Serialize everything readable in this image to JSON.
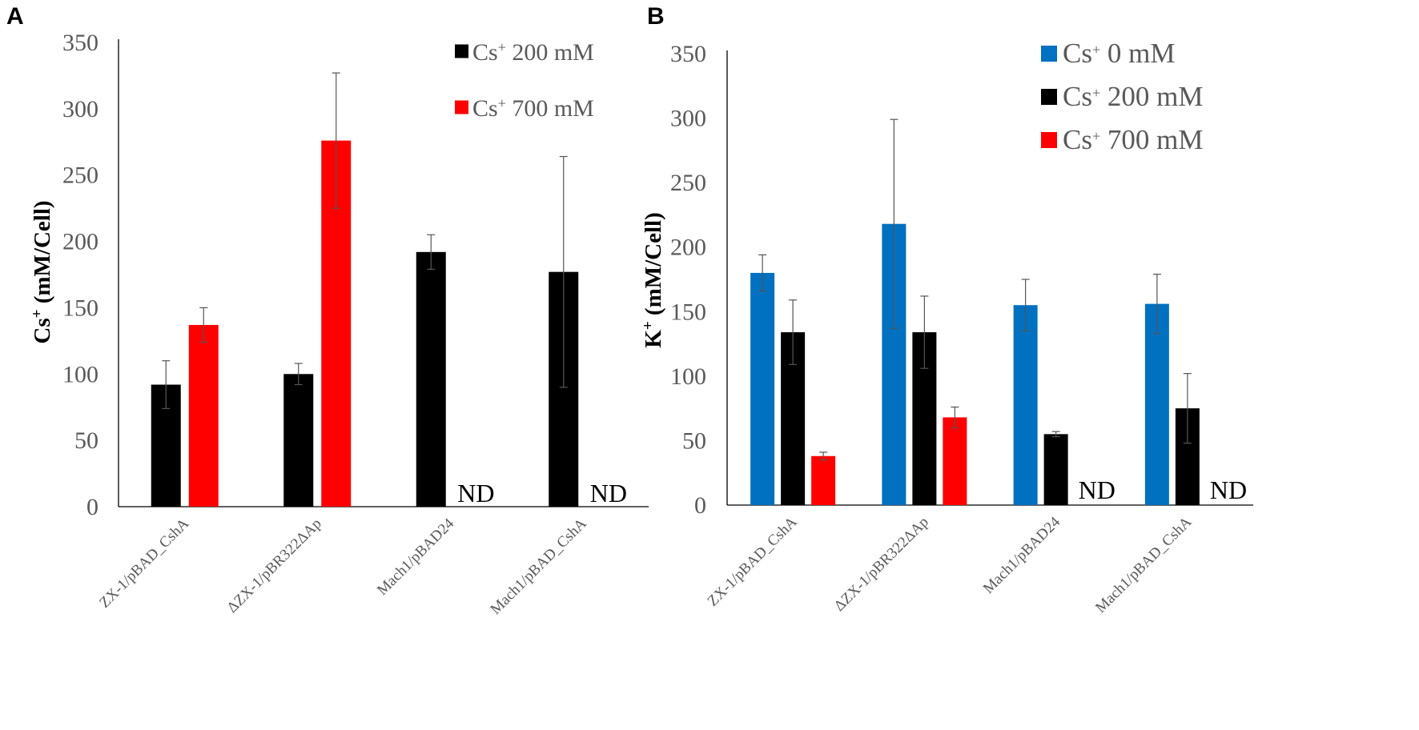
{
  "chart_data": [
    {
      "panel": "A",
      "type": "bar",
      "ylabel": "Cs+ (mM/Cell)",
      "ylabel_main": "Cs",
      "ylabel_sup": "+",
      "ylabel_rest": " (mM/Cell)",
      "ylim": [
        0,
        350
      ],
      "yticks": [
        0,
        50,
        100,
        150,
        200,
        250,
        300,
        350
      ],
      "categories": [
        "ZX-1/pBAD_CshA",
        "ΔZX-1/pBR322ΔAp",
        "Mach1/pBAD24",
        "Mach1/pBAD_CshA"
      ],
      "series": [
        {
          "name": "Cs+ 200 mM",
          "label_main": "Cs",
          "label_sup": "+",
          "label_rest": " 200 mM",
          "color": "#000000",
          "values": [
            92,
            100,
            192,
            177
          ],
          "errors": [
            18,
            8,
            13,
            87
          ],
          "annotations": [
            null,
            null,
            null,
            null
          ]
        },
        {
          "name": "Cs+ 700 mM",
          "label_main": "Cs",
          "label_sup": "+",
          "label_rest": " 700 mM",
          "color": "#ff0000",
          "values": [
            137,
            276,
            null,
            null
          ],
          "errors": [
            13,
            51,
            null,
            null
          ],
          "annotations": [
            null,
            null,
            "ND",
            "ND"
          ]
        }
      ]
    },
    {
      "panel": "B",
      "type": "bar",
      "ylabel": "K+ (mM/Cell)",
      "ylabel_main": "K",
      "ylabel_sup": "+",
      "ylabel_rest": " (mM/Cell)",
      "ylim": [
        0,
        350
      ],
      "yticks": [
        0,
        50,
        100,
        150,
        200,
        250,
        300,
        350
      ],
      "categories": [
        "ZX-1/pBAD_CshA",
        "ΔZX-1/pBR322ΔAp",
        "Mach1/pBAD24",
        "Mach1/pBAD_CshA"
      ],
      "series": [
        {
          "name": "Cs+ 0 mM",
          "label_main": "Cs",
          "label_sup": "+",
          "label_rest": " 0 mM",
          "color": "#0070c0",
          "values": [
            180,
            218,
            155,
            156
          ],
          "errors": [
            14,
            81,
            20,
            23
          ],
          "annotations": [
            null,
            null,
            null,
            null
          ]
        },
        {
          "name": "Cs+ 200 mM",
          "label_main": "Cs",
          "label_sup": "+",
          "label_rest": " 200 mM",
          "color": "#000000",
          "values": [
            134,
            134,
            55,
            75
          ],
          "errors": [
            25,
            28,
            2,
            27
          ],
          "annotations": [
            null,
            null,
            null,
            null
          ]
        },
        {
          "name": "Cs+ 700 mM",
          "label_main": "Cs",
          "label_sup": "+",
          "label_rest": " 700 mM",
          "color": "#ff0000",
          "values": [
            38,
            68,
            null,
            null
          ],
          "errors": [
            3,
            8,
            null,
            null
          ],
          "annotations": [
            null,
            null,
            "ND",
            "ND"
          ]
        }
      ]
    }
  ]
}
